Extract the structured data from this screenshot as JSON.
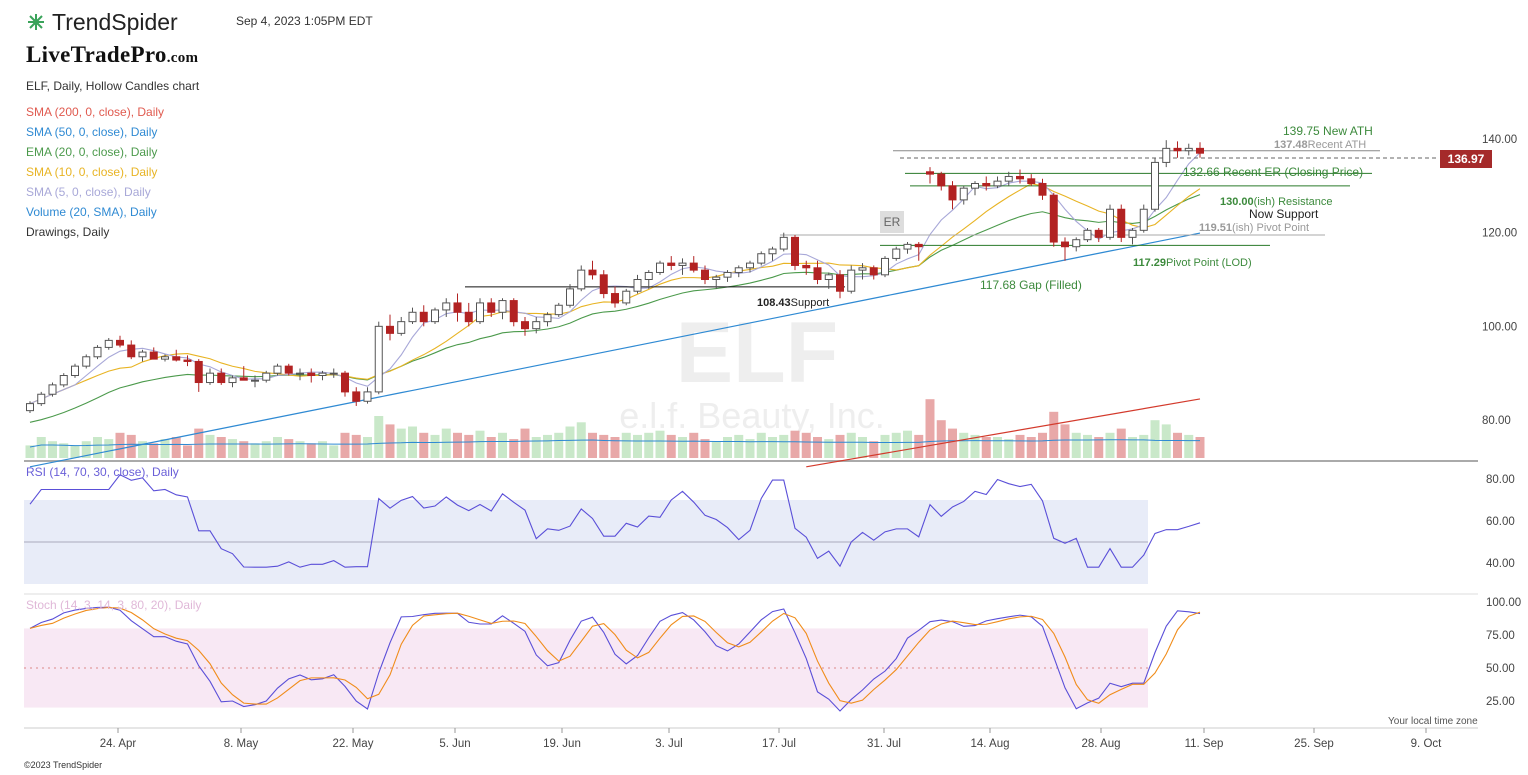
{
  "header": {
    "app_name": "TrendSpider",
    "datetime": "Sep 4, 2023 1:05PM EDT",
    "brand_main": "LiveTradePro",
    "brand_suffix": ".com"
  },
  "legend": {
    "chart_title": "ELF, Daily, Hollow Candles chart",
    "items": [
      {
        "label": "SMA (200, 0, close), Daily",
        "color": "#e05a4f"
      },
      {
        "label": "SMA (50, 0, close), Daily",
        "color": "#2f8ad3"
      },
      {
        "label": "EMA (20, 0, close), Daily",
        "color": "#4c9a4c"
      },
      {
        "label": "SMA (10, 0, close), Daily",
        "color": "#e8b424"
      },
      {
        "label": "SMA (5, 0, close), Daily",
        "color": "#a8a8d8"
      },
      {
        "label": "Volume (20, SMA), Daily",
        "color": "#2f8ad3"
      },
      {
        "label": "Drawings, Daily",
        "color": "#333333"
      }
    ]
  },
  "watermark": {
    "symbol": "ELF",
    "name": "e.l.f. Beauty, Inc."
  },
  "price_badge": "136.97",
  "annotations": {
    "new_ath": "139.75 New ATH",
    "recent_ath_value": "137.48",
    "recent_ath_text": "Recent ATH",
    "recent_er": "132.66 Recent ER (Closing Price)",
    "resistance_value": "130.00",
    "resistance_text": "(ish) Resistance",
    "now_support": "Now Support",
    "pivot_value": "119.51",
    "pivot_text": "(ish) Pivot Point",
    "lod_value": "117.29",
    "lod_text": "Pivot Point (LOD)",
    "gap": "117.68 Gap (Filled)",
    "support_value": "108.43",
    "support_text": "Support",
    "er_label": "ER"
  },
  "panels": {
    "rsi_label": "RSI (14, 70, 30, close), Daily",
    "stoch_label": "Stoch (14, 3, 14, 3, 80, 20), Daily",
    "local_time": "Your local time zone"
  },
  "footer": {
    "copyright": "©2023 TrendSpider"
  },
  "colors": {
    "up_candle": "#555555",
    "down_candle": "#b22222",
    "vol_up": "#c9e8c9",
    "vol_down": "#e8a8a8",
    "rsi_band": "#e8ecf8",
    "stoch_band": "#f8e8f4",
    "rsi_line": "#5a4fd8",
    "stoch_k": "#5a4fd8",
    "stoch_d": "#f08c1a"
  },
  "chart_data": {
    "type": "candlestick",
    "price_axis": {
      "ticks": [
        "140.00",
        "120.00",
        "100.00",
        "80.00"
      ],
      "ylim": [
        70,
        145
      ]
    },
    "rsi_axis": {
      "ticks": [
        "80.00",
        "60.00",
        "40.00"
      ],
      "ylim": [
        30,
        85
      ],
      "band": [
        30,
        70
      ]
    },
    "stoch_axis": {
      "ticks": [
        "100.00",
        "75.00",
        "50.00",
        "25.00"
      ],
      "ylim": [
        10,
        102
      ],
      "band": [
        20,
        80
      ]
    },
    "x_ticks": [
      "24. Apr",
      "8. May",
      "22. May",
      "5. Jun",
      "19. Jun",
      "3. Jul",
      "17. Jul",
      "31. Jul",
      "14. Aug",
      "28. Aug",
      "11. Sep",
      "25. Sep",
      "9. Oct"
    ],
    "candles": [
      [
        82,
        84,
        81.5,
        83.5
      ],
      [
        83.5,
        86,
        83,
        85.5
      ],
      [
        85.5,
        88,
        85,
        87.5
      ],
      [
        87.5,
        90,
        87,
        89.5
      ],
      [
        89.5,
        92,
        89,
        91.5
      ],
      [
        91.5,
        94,
        91,
        93.5
      ],
      [
        93.5,
        96,
        93,
        95.5
      ],
      [
        95.5,
        97.5,
        95,
        97
      ],
      [
        97,
        98,
        95.5,
        96
      ],
      [
        96,
        97,
        93,
        93.5
      ],
      [
        93.5,
        95,
        92.5,
        94.5
      ],
      [
        94.5,
        95.5,
        93,
        93
      ],
      [
        93,
        94,
        92.5,
        93.5
      ],
      [
        93.5,
        95,
        92.5,
        92.8
      ],
      [
        92.8,
        93.8,
        91.5,
        92.5
      ],
      [
        92.5,
        93,
        86,
        88
      ],
      [
        88,
        91,
        87.5,
        90
      ],
      [
        90,
        91,
        87.5,
        88
      ],
      [
        88,
        89.5,
        87,
        89
      ],
      [
        89,
        91.5,
        88.5,
        88.5
      ],
      [
        88.5,
        89.5,
        87,
        88.5
      ],
      [
        88.5,
        90.5,
        88,
        90
      ],
      [
        90,
        92,
        89.5,
        91.5
      ],
      [
        91.5,
        92,
        89.5,
        90
      ],
      [
        90,
        91,
        88.5,
        90
      ],
      [
        90,
        91,
        88,
        89.5
      ],
      [
        89.5,
        90.5,
        88.5,
        90
      ],
      [
        90,
        91,
        89,
        90
      ],
      [
        90,
        90.5,
        85,
        86
      ],
      [
        86,
        87,
        83,
        84
      ],
      [
        84,
        87,
        83.5,
        86
      ],
      [
        86,
        101,
        85.5,
        100
      ],
      [
        100,
        102.5,
        97,
        98.5
      ],
      [
        98.5,
        102,
        98,
        101
      ],
      [
        101,
        104,
        100.5,
        103
      ],
      [
        103,
        104.5,
        100,
        101
      ],
      [
        101,
        104,
        100.5,
        103.5
      ],
      [
        103.5,
        106,
        102,
        105
      ],
      [
        105,
        107,
        101,
        103
      ],
      [
        103,
        105,
        100,
        101
      ],
      [
        101,
        106,
        100.5,
        105
      ],
      [
        105,
        106,
        102,
        103
      ],
      [
        103,
        106,
        101.5,
        105.5
      ],
      [
        105.5,
        106,
        100,
        101
      ],
      [
        101,
        102,
        98,
        99.5
      ],
      [
        99.5,
        102,
        98.5,
        101
      ],
      [
        101,
        103,
        100,
        102.5
      ],
      [
        102.5,
        105,
        102,
        104.5
      ],
      [
        104.5,
        109,
        104,
        108
      ],
      [
        108,
        113,
        107.5,
        112
      ],
      [
        112,
        114,
        110,
        111
      ],
      [
        111,
        112,
        106,
        107
      ],
      [
        107,
        108.5,
        104,
        105
      ],
      [
        105,
        108,
        104.5,
        107.5
      ],
      [
        107.5,
        111,
        107,
        110
      ],
      [
        110,
        112,
        108,
        111.5
      ],
      [
        111.5,
        114,
        111,
        113.5
      ],
      [
        113.5,
        115,
        112,
        113
      ],
      [
        113,
        114.5,
        111,
        113.5
      ],
      [
        113.5,
        115,
        111.5,
        112
      ],
      [
        112,
        113,
        109,
        110
      ],
      [
        110,
        111,
        108,
        110.5
      ],
      [
        110.5,
        112,
        109.5,
        111.5
      ],
      [
        111.5,
        113,
        110.5,
        112.5
      ],
      [
        112.5,
        114,
        111.5,
        113.5
      ],
      [
        113.5,
        116,
        113,
        115.5
      ],
      [
        115.5,
        117,
        114,
        116.5
      ],
      [
        116.5,
        120,
        116,
        119
      ],
      [
        119,
        119.5,
        112,
        113
      ],
      [
        113,
        114,
        111,
        112.5
      ],
      [
        112.5,
        114,
        109,
        110
      ],
      [
        110,
        111.5,
        108,
        111
      ],
      [
        111,
        112,
        106,
        107.5
      ],
      [
        107.5,
        113,
        107,
        112
      ],
      [
        112,
        113.5,
        110,
        112.5
      ],
      [
        112.5,
        113,
        110,
        111
      ],
      [
        111,
        115,
        110.5,
        114.5
      ],
      [
        114.5,
        117,
        114,
        116.5
      ],
      [
        116.5,
        118,
        115.5,
        117.5
      ],
      [
        117.5,
        118,
        114,
        117
      ],
      [
        133,
        134,
        130.5,
        132.5
      ],
      [
        132.5,
        133,
        129,
        130
      ],
      [
        130,
        131,
        125,
        127
      ],
      [
        127,
        130,
        126,
        129.5
      ],
      [
        129.5,
        131,
        128,
        130.5
      ],
      [
        130.5,
        132,
        129,
        130
      ],
      [
        130,
        132,
        129.5,
        131
      ],
      [
        131,
        133,
        130,
        132
      ],
      [
        132,
        133.5,
        130.5,
        131.5
      ],
      [
        131.5,
        132.5,
        130,
        130.5
      ],
      [
        130.5,
        131.5,
        127,
        128
      ],
      [
        128,
        128.5,
        117,
        118
      ],
      [
        118,
        119,
        114,
        117
      ],
      [
        117,
        119,
        116,
        118.5
      ],
      [
        118.5,
        121,
        118,
        120.5
      ],
      [
        120.5,
        121,
        118,
        119
      ],
      [
        119,
        126,
        118.5,
        125
      ],
      [
        125,
        126,
        118,
        119
      ],
      [
        119,
        121,
        117.5,
        120.5
      ],
      [
        120.5,
        126,
        120,
        125
      ],
      [
        125,
        136,
        124.5,
        135
      ],
      [
        135,
        139.75,
        134,
        138
      ],
      [
        138,
        139.5,
        136,
        137.5
      ],
      [
        137.5,
        139,
        136.5,
        138
      ],
      [
        138,
        139.3,
        136,
        136.97
      ]
    ],
    "volume": [
      0.3,
      0.5,
      0.4,
      0.35,
      0.3,
      0.4,
      0.5,
      0.45,
      0.6,
      0.55,
      0.4,
      0.35,
      0.45,
      0.5,
      0.3,
      0.7,
      0.55,
      0.5,
      0.45,
      0.4,
      0.35,
      0.4,
      0.5,
      0.45,
      0.4,
      0.35,
      0.4,
      0.3,
      0.6,
      0.55,
      0.5,
      1.0,
      0.8,
      0.7,
      0.75,
      0.6,
      0.55,
      0.7,
      0.6,
      0.55,
      0.65,
      0.5,
      0.6,
      0.45,
      0.7,
      0.5,
      0.55,
      0.6,
      0.75,
      0.85,
      0.6,
      0.55,
      0.5,
      0.6,
      0.55,
      0.6,
      0.65,
      0.55,
      0.5,
      0.6,
      0.45,
      0.4,
      0.5,
      0.55,
      0.45,
      0.6,
      0.5,
      0.55,
      0.65,
      0.6,
      0.5,
      0.45,
      0.55,
      0.6,
      0.5,
      0.4,
      0.55,
      0.6,
      0.65,
      0.55,
      1.4,
      0.9,
      0.7,
      0.6,
      0.55,
      0.5,
      0.5,
      0.45,
      0.55,
      0.5,
      0.6,
      1.1,
      0.8,
      0.6,
      0.55,
      0.5,
      0.6,
      0.7,
      0.5,
      0.55,
      0.9,
      0.8,
      0.6,
      0.55,
      0.5
    ]
  }
}
